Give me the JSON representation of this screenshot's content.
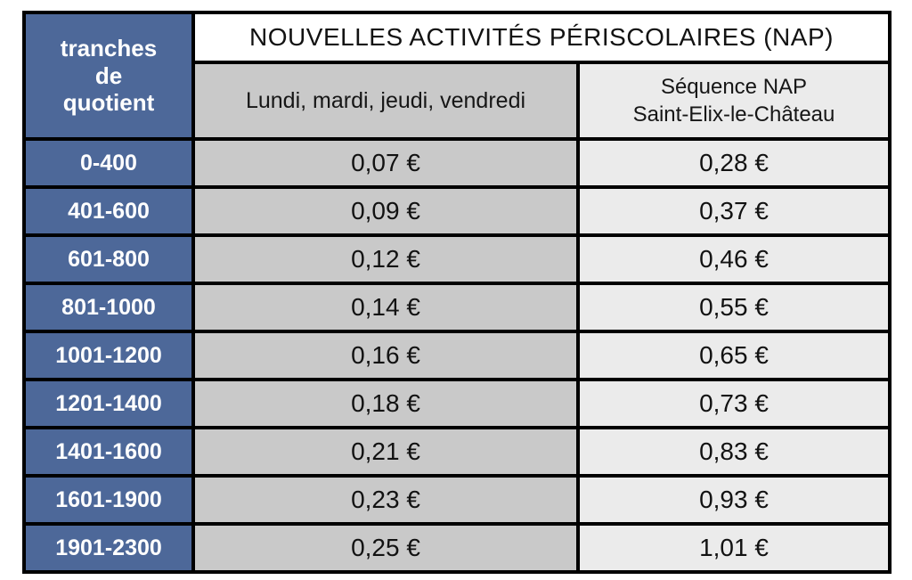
{
  "table": {
    "title": "NOUVELLES ACTIVITÉS PÉRISCOLAIRES (NAP)",
    "corner_header": "tranches\nde\nquotient",
    "column_headers": {
      "days": "Lundi, mardi, jeudi, vendredi",
      "sequence": "Séquence NAP\nSaint-Elix-le-Château"
    },
    "rows": [
      {
        "tranche": "0-400",
        "days_price": "0,07 €",
        "sequence_price": "0,28 €"
      },
      {
        "tranche": "401-600",
        "days_price": "0,09 €",
        "sequence_price": "0,37 €"
      },
      {
        "tranche": "601-800",
        "days_price": "0,12 €",
        "sequence_price": "0,46 €"
      },
      {
        "tranche": "801-1000",
        "days_price": "0,14 €",
        "sequence_price": "0,55 €"
      },
      {
        "tranche": "1001-1200",
        "days_price": "0,16 €",
        "sequence_price": "0,65 €"
      },
      {
        "tranche": "1201-1400",
        "days_price": "0,18 €",
        "sequence_price": "0,73 €"
      },
      {
        "tranche": "1401-1600",
        "days_price": "0,21 €",
        "sequence_price": "0,83 €"
      },
      {
        "tranche": "1601-1900",
        "days_price": "0,23 €",
        "sequence_price": "0,93 €"
      },
      {
        "tranche": "1901-2300",
        "days_price": "0,25 €",
        "sequence_price": "1,01 €"
      }
    ]
  },
  "colors": {
    "header_blue": "#4d6899",
    "days_column_gray": "#c9c9c9",
    "sequence_column_gray": "#ebebeb",
    "border": "#000000",
    "title_background": "#ffffff",
    "label_text": "#ffffff",
    "value_text": "#121212"
  }
}
